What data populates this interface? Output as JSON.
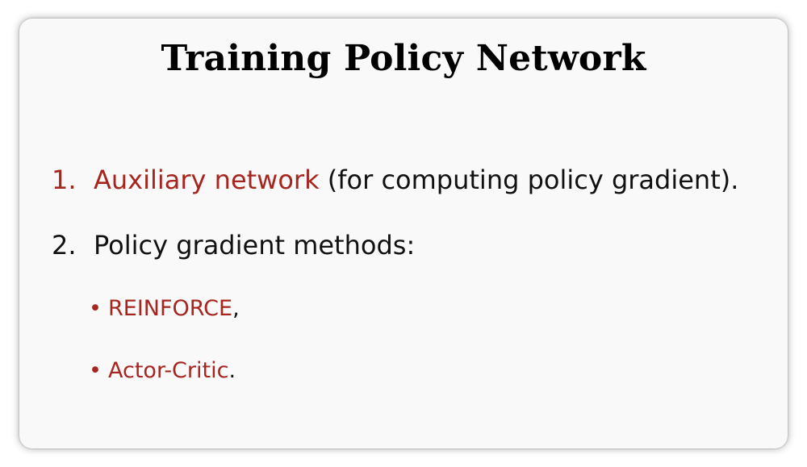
{
  "slide": {
    "title": "Training Policy Network",
    "items": [
      {
        "number": "1.",
        "highlight": "Auxiliary network",
        "rest": " (for computing policy gradient)."
      },
      {
        "number": "2.",
        "text": "Policy gradient methods:"
      }
    ],
    "bullets": [
      {
        "marker": "•",
        "highlight": "REINFORCE",
        "punct": ","
      },
      {
        "marker": "•",
        "highlight": "Actor-Critic",
        "punct": "."
      }
    ]
  },
  "colors": {
    "accent": "#a6261f",
    "text": "#111111",
    "background": "#f9f9f9"
  }
}
